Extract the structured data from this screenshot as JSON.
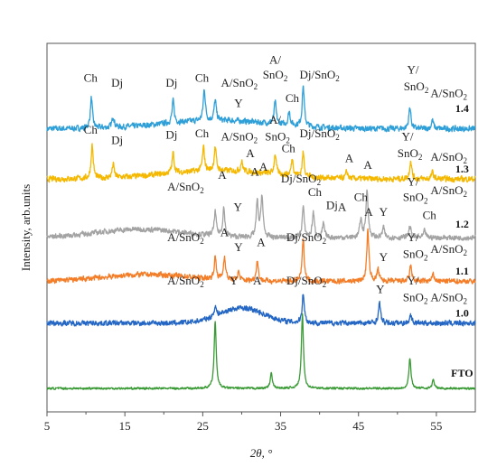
{
  "chart_data": {
    "type": "line",
    "xlabel": "2θ, °",
    "ylabel": "Intensity, arb.units",
    "xlim": [
      5,
      60
    ],
    "x_ticks": [
      "5",
      "15",
      "25",
      "35",
      "45",
      "55"
    ],
    "grid": false,
    "legend": "none",
    "series": [
      {
        "name": "1.4",
        "color": "#2f9fd8",
        "baseline": 8.45,
        "noise": 0.22,
        "hump": {
          "center": 27,
          "width": 10,
          "height": 0.25
        },
        "peaks": [
          [
            10.7,
            0.9
          ],
          [
            13.5,
            0.35
          ],
          [
            21.2,
            0.65
          ],
          [
            25.2,
            0.95
          ],
          [
            26.6,
            0.6
          ],
          [
            34.3,
            0.65
          ],
          [
            36.1,
            0.4
          ],
          [
            37.9,
            1.2
          ],
          [
            51.6,
            0.65
          ],
          [
            54.5,
            0.25
          ]
        ]
      },
      {
        "name": "1.3",
        "color": "#f5b800",
        "baseline": 6.95,
        "noise": 0.22,
        "hump": {
          "center": 27,
          "width": 10,
          "height": 0.25
        },
        "peaks": [
          [
            10.8,
            1.0
          ],
          [
            13.5,
            0.4
          ],
          [
            21.2,
            0.6
          ],
          [
            25.1,
            0.7
          ],
          [
            26.6,
            0.7
          ],
          [
            30.0,
            0.3
          ],
          [
            34.3,
            0.6
          ],
          [
            36.5,
            0.5
          ],
          [
            37.9,
            0.7
          ],
          [
            43.5,
            0.2
          ],
          [
            51.7,
            0.55
          ],
          [
            54.5,
            0.2
          ]
        ]
      },
      {
        "name": "1.2",
        "color": "#a3a3a3",
        "baseline": 5.2,
        "noise": 0.2,
        "hump": {
          "center": 17,
          "width": 8,
          "height": 0.25
        },
        "peaks": [
          [
            26.6,
            0.7
          ],
          [
            27.7,
            0.85
          ],
          [
            32.0,
            1.05
          ],
          [
            32.6,
            1.25
          ],
          [
            37.9,
            0.9
          ],
          [
            39.2,
            0.75
          ],
          [
            40.5,
            0.4
          ],
          [
            45.3,
            0.55
          ],
          [
            46.1,
            1.45
          ],
          [
            48.2,
            0.3
          ],
          [
            51.6,
            0.35
          ],
          [
            53.5,
            0.2
          ]
        ]
      },
      {
        "name": "1.1",
        "color": "#f47d28",
        "baseline": 3.9,
        "noise": 0.2,
        "hump": {
          "center": 18,
          "width": 8,
          "height": 0.2
        },
        "peaks": [
          [
            26.6,
            0.65
          ],
          [
            27.8,
            0.7
          ],
          [
            29.6,
            0.25
          ],
          [
            32.0,
            0.6
          ],
          [
            37.9,
            1.25
          ],
          [
            46.2,
            1.5
          ],
          [
            47.5,
            0.35
          ],
          [
            51.7,
            0.45
          ],
          [
            54.6,
            0.2
          ]
        ]
      },
      {
        "name": "1.0",
        "color": "#2466c4",
        "baseline": 2.65,
        "noise": 0.2,
        "hump": {
          "center": 30,
          "width": 4,
          "height": 0.45
        },
        "peaks": [
          [
            26.6,
            0.3
          ],
          [
            37.9,
            0.9
          ],
          [
            47.7,
            0.6
          ],
          [
            51.7,
            0.25
          ]
        ]
      },
      {
        "name": "FTO",
        "color": "#3a9a35",
        "baseline": 0.7,
        "noise": 0.08,
        "hump": {
          "center": 30,
          "width": 6,
          "height": 0.0
        },
        "peaks": [
          [
            26.6,
            2.0
          ],
          [
            33.8,
            0.45
          ],
          [
            37.8,
            2.2
          ],
          [
            51.6,
            0.9
          ],
          [
            54.6,
            0.25
          ]
        ]
      }
    ],
    "annotations": [
      {
        "text": "Ch",
        "x": 10.6,
        "y": 9.85
      },
      {
        "text": "Dj",
        "x": 14.0,
        "y": 9.7
      },
      {
        "text": "Dj",
        "x": 21.0,
        "y": 9.7
      },
      {
        "text": "Ch",
        "x": 24.9,
        "y": 9.85
      },
      {
        "text": "A/SnO2",
        "x": 29.7,
        "y": 9.7
      },
      {
        "text": "Y",
        "x": 29.6,
        "y": 9.1
      },
      {
        "text": "A/",
        "x": 34.3,
        "y": 10.4
      },
      {
        "text": "SnO2",
        "x": 34.3,
        "y": 9.95
      },
      {
        "text": "Dj/SnO2",
        "x": 40.0,
        "y": 9.95
      },
      {
        "text": "Ch",
        "x": 36.5,
        "y": 9.25
      },
      {
        "text": "Y/",
        "x": 52.0,
        "y": 10.1
      },
      {
        "text": "SnO2",
        "x": 52.4,
        "y": 9.6
      },
      {
        "text": "A/SnO2",
        "x": 56.6,
        "y": 9.4
      },
      {
        "text": "Ch",
        "x": 10.6,
        "y": 8.3
      },
      {
        "text": "Dj",
        "x": 14.0,
        "y": 8.0
      },
      {
        "text": "Dj",
        "x": 21.0,
        "y": 8.15
      },
      {
        "text": "Ch",
        "x": 24.9,
        "y": 8.2
      },
      {
        "text": "A/SnO2",
        "x": 29.7,
        "y": 8.1
      },
      {
        "text": "A/",
        "x": 34.3,
        "y": 8.6
      },
      {
        "text": "SnO2",
        "x": 34.6,
        "y": 8.1
      },
      {
        "text": "Dj/SnO2",
        "x": 40.0,
        "y": 8.2
      },
      {
        "text": "A",
        "x": 31.1,
        "y": 7.6
      },
      {
        "text": "Ch",
        "x": 36.0,
        "y": 7.75
      },
      {
        "text": "A",
        "x": 43.8,
        "y": 7.45
      },
      {
        "text": "Y/",
        "x": 51.3,
        "y": 8.1
      },
      {
        "text": "SnO2",
        "x": 51.6,
        "y": 7.6
      },
      {
        "text": "A/SnO2",
        "x": 56.6,
        "y": 7.5
      },
      {
        "text": "A",
        "x": 27.5,
        "y": 6.95
      },
      {
        "text": "A",
        "x": 31.7,
        "y": 7.05
      },
      {
        "text": "A",
        "x": 32.8,
        "y": 7.2
      },
      {
        "text": "A/SnO2",
        "x": 22.8,
        "y": 6.6
      },
      {
        "text": "Y",
        "x": 29.5,
        "y": 6.0
      },
      {
        "text": "Dj/SnO2",
        "x": 37.6,
        "y": 6.85
      },
      {
        "text": "A",
        "x": 46.2,
        "y": 7.25
      },
      {
        "text": "Ch",
        "x": 39.4,
        "y": 6.45
      },
      {
        "text": "Dj",
        "x": 41.6,
        "y": 6.05
      },
      {
        "text": "A",
        "x": 42.9,
        "y": 6.0
      },
      {
        "text": "Ch",
        "x": 45.3,
        "y": 6.3
      },
      {
        "text": "Y",
        "x": 48.2,
        "y": 5.85
      },
      {
        "text": "Y/",
        "x": 52.0,
        "y": 6.75
      },
      {
        "text": "SnO2",
        "x": 52.3,
        "y": 6.3
      },
      {
        "text": "A/SnO2",
        "x": 56.6,
        "y": 6.5
      },
      {
        "text": "Ch",
        "x": 54.1,
        "y": 5.75
      },
      {
        "text": "A/SnO2",
        "x": 22.8,
        "y": 5.1
      },
      {
        "text": "A",
        "x": 27.8,
        "y": 5.25
      },
      {
        "text": "Y",
        "x": 29.6,
        "y": 4.8
      },
      {
        "text": "A",
        "x": 32.5,
        "y": 4.95
      },
      {
        "text": "Dj/SnO2",
        "x": 38.3,
        "y": 5.1
      },
      {
        "text": "A",
        "x": 46.3,
        "y": 5.85
      },
      {
        "text": "Y",
        "x": 48.2,
        "y": 4.5
      },
      {
        "text": "Y/",
        "x": 52.0,
        "y": 5.1
      },
      {
        "text": "SnO2",
        "x": 52.3,
        "y": 4.6
      },
      {
        "text": "A/SnO2",
        "x": 56.6,
        "y": 4.75
      },
      {
        "text": "A/SnO2",
        "x": 22.8,
        "y": 3.8
      },
      {
        "text": "Y",
        "x": 29.0,
        "y": 3.8
      },
      {
        "text": "A",
        "x": 32.0,
        "y": 3.8
      },
      {
        "text": "Dj/SnO2",
        "x": 38.3,
        "y": 3.8
      },
      {
        "text": "Y",
        "x": 47.8,
        "y": 3.55
      },
      {
        "text": "Y/",
        "x": 52.0,
        "y": 3.8
      },
      {
        "text": "SnO2",
        "x": 52.3,
        "y": 3.3
      },
      {
        "text": "A/SnO2",
        "x": 56.6,
        "y": 3.3
      }
    ],
    "sample_labels": [
      {
        "text": "1.4",
        "x": 58.3,
        "y": 8.95
      },
      {
        "text": "1.3",
        "x": 58.3,
        "y": 7.15
      },
      {
        "text": "1.2",
        "x": 58.3,
        "y": 5.5
      },
      {
        "text": "1.1",
        "x": 58.3,
        "y": 4.1
      },
      {
        "text": "1.0",
        "x": 58.3,
        "y": 2.85
      },
      {
        "text": "FTO",
        "x": 58.3,
        "y": 1.05
      }
    ]
  }
}
